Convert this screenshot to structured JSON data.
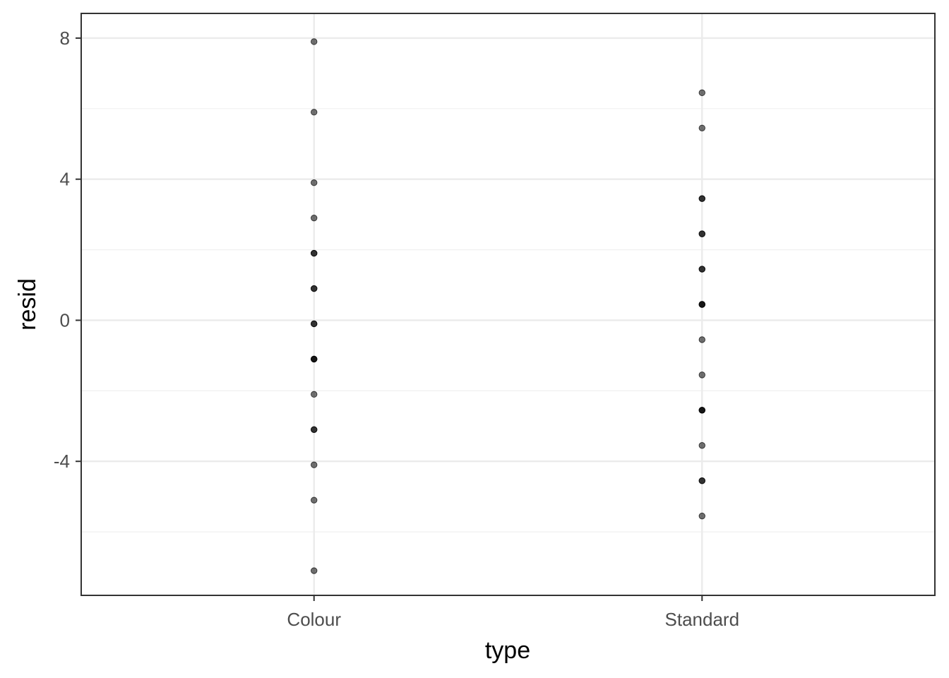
{
  "chart_data": {
    "type": "scatter",
    "xlabel": "type",
    "ylabel": "resid",
    "categories": [
      "Colour",
      "Standard"
    ],
    "ylim": [
      -7.8,
      8.7
    ],
    "y_ticks": [
      -4,
      0,
      4,
      8
    ],
    "y_tick_labels": [
      "-4",
      "0",
      "4",
      "8"
    ],
    "y_minor_ticks": [
      -6,
      -2,
      2,
      6
    ],
    "grid": true,
    "legend": "none",
    "point_color": "#000000",
    "point_alpha": 0.55,
    "series": [
      {
        "category": "Colour",
        "values": [
          7.9,
          5.9,
          3.9,
          2.9,
          1.9,
          1.9,
          0.9,
          0.9,
          -0.1,
          -0.1,
          -1.1,
          -1.1,
          -1.1,
          -2.1,
          -3.1,
          -3.1,
          -4.1,
          -5.1,
          -7.1
        ]
      },
      {
        "category": "Standard",
        "values": [
          6.45,
          5.45,
          3.45,
          3.45,
          2.45,
          2.45,
          1.45,
          1.45,
          0.45,
          0.45,
          0.45,
          -0.55,
          -1.55,
          -2.55,
          -2.55,
          -2.55,
          -3.55,
          -4.55,
          -4.55,
          -5.55
        ]
      }
    ]
  }
}
